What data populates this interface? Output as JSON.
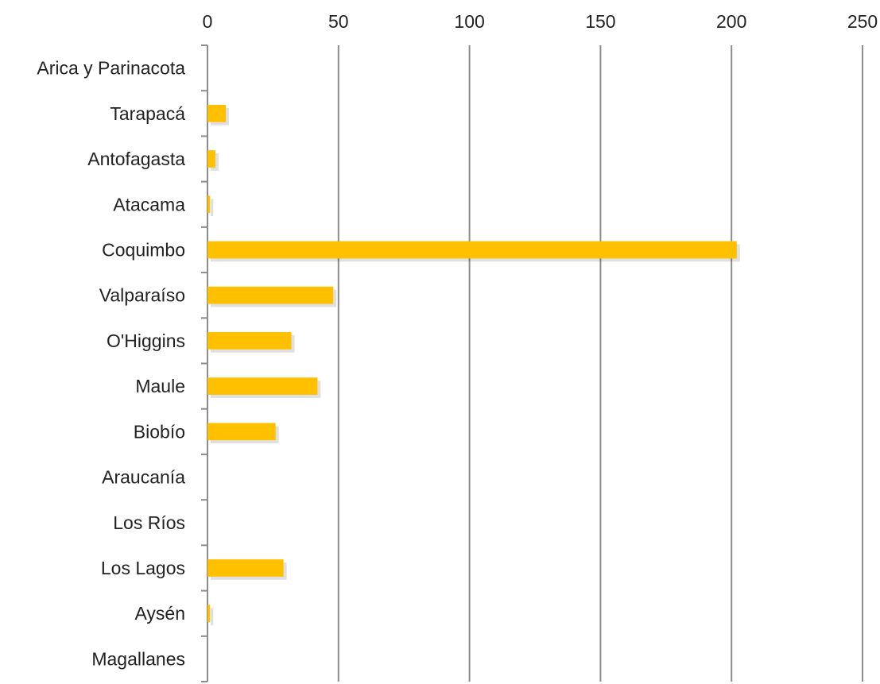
{
  "chart_data": {
    "type": "bar",
    "orientation": "horizontal",
    "title": "",
    "xlabel": "",
    "ylabel": "",
    "xlim": [
      0,
      250
    ],
    "x_ticks": [
      0,
      50,
      100,
      150,
      200,
      250
    ],
    "x_axis_position": "top",
    "grid": true,
    "legend": "none",
    "categories": [
      "Arica y Parinacota",
      "Tarapacá",
      "Antofagasta",
      "Atacama",
      "Coquimbo",
      "Valparaíso",
      "O'Higgins",
      "Maule",
      "Biobío",
      "Araucanía",
      "Los Ríos",
      "Los Lagos",
      "Aysén",
      "Magallanes"
    ],
    "series": [
      {
        "values": [
          0,
          7,
          3,
          1,
          202,
          48,
          32,
          42,
          26,
          0,
          0,
          29,
          1,
          0
        ],
        "color": "#FFC000"
      }
    ],
    "colors": {
      "bar": "#FFC000",
      "grid": "#8c8c8c",
      "axis": "#8c8c8c",
      "text": "#222222"
    }
  }
}
